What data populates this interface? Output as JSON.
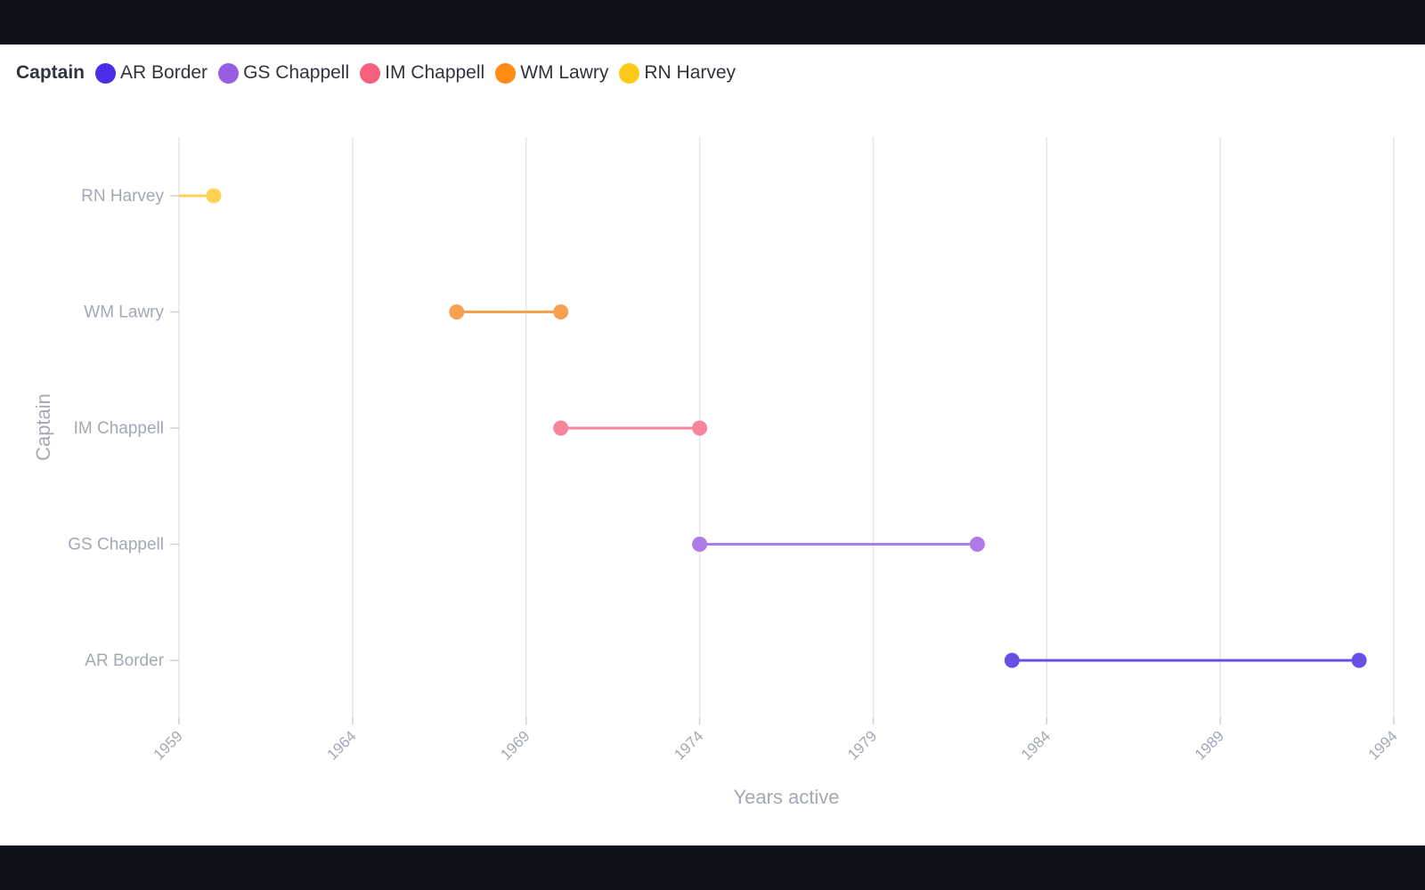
{
  "legend": {
    "title": "Captain",
    "items": [
      {
        "label": "AR Border",
        "color": "#4b2de8"
      },
      {
        "label": "GS Chappell",
        "color": "#975ee3"
      },
      {
        "label": "IM Chappell",
        "color": "#f6607e"
      },
      {
        "label": "WM Lawry",
        "color": "#ff8a14"
      },
      {
        "label": "RN Harvey",
        "color": "#ffc91a"
      }
    ]
  },
  "chart_data": {
    "type": "dumbbell",
    "xlabel": "Years active",
    "ylabel": "Captain",
    "xlim": [
      1959,
      1994
    ],
    "x_ticks": [
      "1959",
      "1964",
      "1969",
      "1974",
      "1979",
      "1984",
      "1989",
      "1994"
    ],
    "grid": true,
    "legend_position": "top-left",
    "categories": [
      "RN Harvey",
      "WM Lawry",
      "IM Chappell",
      "GS Chappell",
      "AR Border"
    ],
    "series": [
      {
        "name": "RN Harvey",
        "start": 1959,
        "end": 1960,
        "color": "#ffd155",
        "start_marker": false
      },
      {
        "name": "WM Lawry",
        "start": 1967,
        "end": 1970,
        "color": "#f7a14f",
        "start_marker": true
      },
      {
        "name": "IM Chappell",
        "start": 1970,
        "end": 1974,
        "color": "#f6849a",
        "start_marker": true
      },
      {
        "name": "GS Chappell",
        "start": 1974,
        "end": 1982,
        "color": "#ad7ae7",
        "start_marker": true
      },
      {
        "name": "AR Border",
        "start": 1983,
        "end": 1993,
        "color": "#6a4fe6",
        "start_marker": true
      }
    ]
  }
}
